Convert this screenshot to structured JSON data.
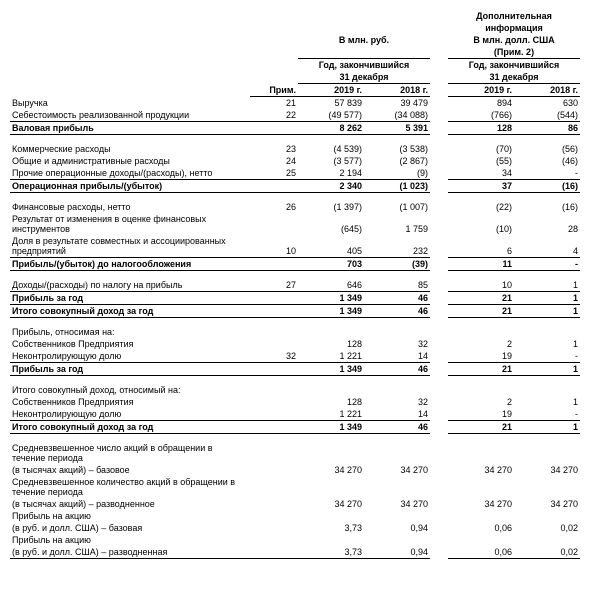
{
  "headers": {
    "add_info1": "Дополнительная",
    "add_info2": "информация",
    "rub": "В млн. руб.",
    "usd": "В млн. долл. США",
    "note2": "(Прим. 2)",
    "period1": "Год, закончившийся",
    "period2": "31 декабря",
    "y2019": "2019 г.",
    "y2018": "2018 г.",
    "note": "Прим."
  },
  "rows": [
    {
      "label": "Выручка",
      "note": "21",
      "r19": "57 839",
      "r18": "39 479",
      "u19": "894",
      "u18": "630",
      "bold": false
    },
    {
      "label": "Себестоимость реализованной продукции",
      "note": "22",
      "r19": "(49 577)",
      "r18": "(34 088)",
      "u19": "(766)",
      "u18": "(544)",
      "bold": false,
      "bb": true
    },
    {
      "label": "Валовая прибыль",
      "note": "",
      "r19": "8 262",
      "r18": "5 391",
      "u19": "128",
      "u18": "86",
      "bold": true,
      "bb": true
    },
    {
      "spacer": true
    },
    {
      "label": "Коммерческие расходы",
      "note": "23",
      "r19": "(4 539)",
      "r18": "(3 538)",
      "u19": "(70)",
      "u18": "(56)",
      "bold": false
    },
    {
      "label": "Общие и административные расходы",
      "note": "24",
      "r19": "(3 577)",
      "r18": "(2 867)",
      "u19": "(55)",
      "u18": "(46)",
      "bold": false
    },
    {
      "label": "Прочие операционные доходы/(расходы), нетто",
      "note": "25",
      "r19": "2 194",
      "r18": "(9)",
      "u19": "34",
      "u18": "-",
      "bold": false,
      "bb": true
    },
    {
      "label": "Операционная прибыль/(убыток)",
      "note": "",
      "r19": "2 340",
      "r18": "(1 023)",
      "u19": "37",
      "u18": "(16)",
      "bold": true,
      "bb": true
    },
    {
      "spacer": true
    },
    {
      "label": "Финансовые расходы, нетто",
      "note": "26",
      "r19": "(1 397)",
      "r18": "(1 007)",
      "u19": "(22)",
      "u18": "(16)",
      "bold": false
    },
    {
      "label": "Результат от изменения в оценке финансовых инструментов",
      "note": "",
      "r19": "(645)",
      "r18": "1 759",
      "u19": "(10)",
      "u18": "28",
      "bold": false,
      "wrap": true
    },
    {
      "label": "Доля в результате совместных и ассоциированных предприятий",
      "note": "10",
      "r19": "405",
      "r18": "232",
      "u19": "6",
      "u18": "4",
      "bold": false,
      "bb": true,
      "wrap": true
    },
    {
      "label": "Прибыль/(убыток) до налогообложения",
      "note": "",
      "r19": "703",
      "r18": "(39)",
      "u19": "11",
      "u18": "-",
      "bold": true,
      "bb": true
    },
    {
      "spacer": true
    },
    {
      "label": "Доходы/(расходы) по налогу на прибыль",
      "note": "27",
      "r19": "646",
      "r18": "85",
      "u19": "10",
      "u18": "1",
      "bold": false,
      "bb": true
    },
    {
      "label": "Прибыль за год",
      "note": "",
      "r19": "1 349",
      "r18": "46",
      "u19": "21",
      "u18": "1",
      "bold": true,
      "bb": true
    },
    {
      "label": "Итого совокупный доход за год",
      "note": "",
      "r19": "1 349",
      "r18": "46",
      "u19": "21",
      "u18": "1",
      "bold": true,
      "bb": true
    },
    {
      "spacer": true
    },
    {
      "label": "Прибыль, относимая на:",
      "note": "",
      "r19": "",
      "r18": "",
      "u19": "",
      "u18": "",
      "bold": false
    },
    {
      "label": "Собственников Предприятия",
      "note": "",
      "r19": "128",
      "r18": "32",
      "u19": "2",
      "u18": "1",
      "bold": false
    },
    {
      "label": "Неконтролирующую долю",
      "note": "32",
      "r19": "1 221",
      "r18": "14",
      "u19": "19",
      "u18": "-",
      "bold": false,
      "bb": true
    },
    {
      "label": "Прибыль за год",
      "note": "",
      "r19": "1 349",
      "r18": "46",
      "u19": "21",
      "u18": "1",
      "bold": true,
      "bb": true
    },
    {
      "spacer": true
    },
    {
      "label": "Итого совокупный доход, относимый на:",
      "note": "",
      "r19": "",
      "r18": "",
      "u19": "",
      "u18": "",
      "bold": false
    },
    {
      "label": "Собственников Предприятия",
      "note": "",
      "r19": "128",
      "r18": "32",
      "u19": "2",
      "u18": "1",
      "bold": false
    },
    {
      "label": "Неконтролирующую долю",
      "note": "",
      "r19": "1 221",
      "r18": "14",
      "u19": "19",
      "u18": "-",
      "bold": false,
      "bb": true
    },
    {
      "label": "Итого совокупный доход за год",
      "note": "",
      "r19": "1 349",
      "r18": "46",
      "u19": "21",
      "u18": "1",
      "bold": true,
      "bb": true
    },
    {
      "spacer": true
    },
    {
      "label": "Средневзвешенное число акций в обращении в течение периода",
      "note": "",
      "r19": "",
      "r18": "",
      "u19": "",
      "u18": "",
      "bold": false,
      "wrap": true
    },
    {
      "label": "(в тысячах акций) – базовое",
      "note": "",
      "r19": "34 270",
      "r18": "34 270",
      "u19": "34 270",
      "u18": "34 270",
      "bold": false
    },
    {
      "label": "Средневзвешенное количество акций в обращении в течение периода",
      "note": "",
      "r19": "",
      "r18": "",
      "u19": "",
      "u18": "",
      "bold": false,
      "wrap": true
    },
    {
      "label": "(в тысячах акций) – разводненное",
      "note": "",
      "r19": "34 270",
      "r18": "34 270",
      "u19": "34 270",
      "u18": "34 270",
      "bold": false
    },
    {
      "label": "Прибыль на акцию",
      "note": "",
      "r19": "",
      "r18": "",
      "u19": "",
      "u18": "",
      "bold": false
    },
    {
      "label": "(в руб. и долл. США) – базовая",
      "note": "",
      "r19": "3,73",
      "r18": "0,94",
      "u19": "0,06",
      "u18": "0,02",
      "bold": false
    },
    {
      "label": "Прибыль на акцию",
      "note": "",
      "r19": "",
      "r18": "",
      "u19": "",
      "u18": "",
      "bold": false
    },
    {
      "label": "(в руб. и долл. США) – разводненная",
      "note": "",
      "r19": "3,73",
      "r18": "0,94",
      "u19": "0,06",
      "u18": "0,02",
      "bold": false,
      "bb": true
    }
  ]
}
